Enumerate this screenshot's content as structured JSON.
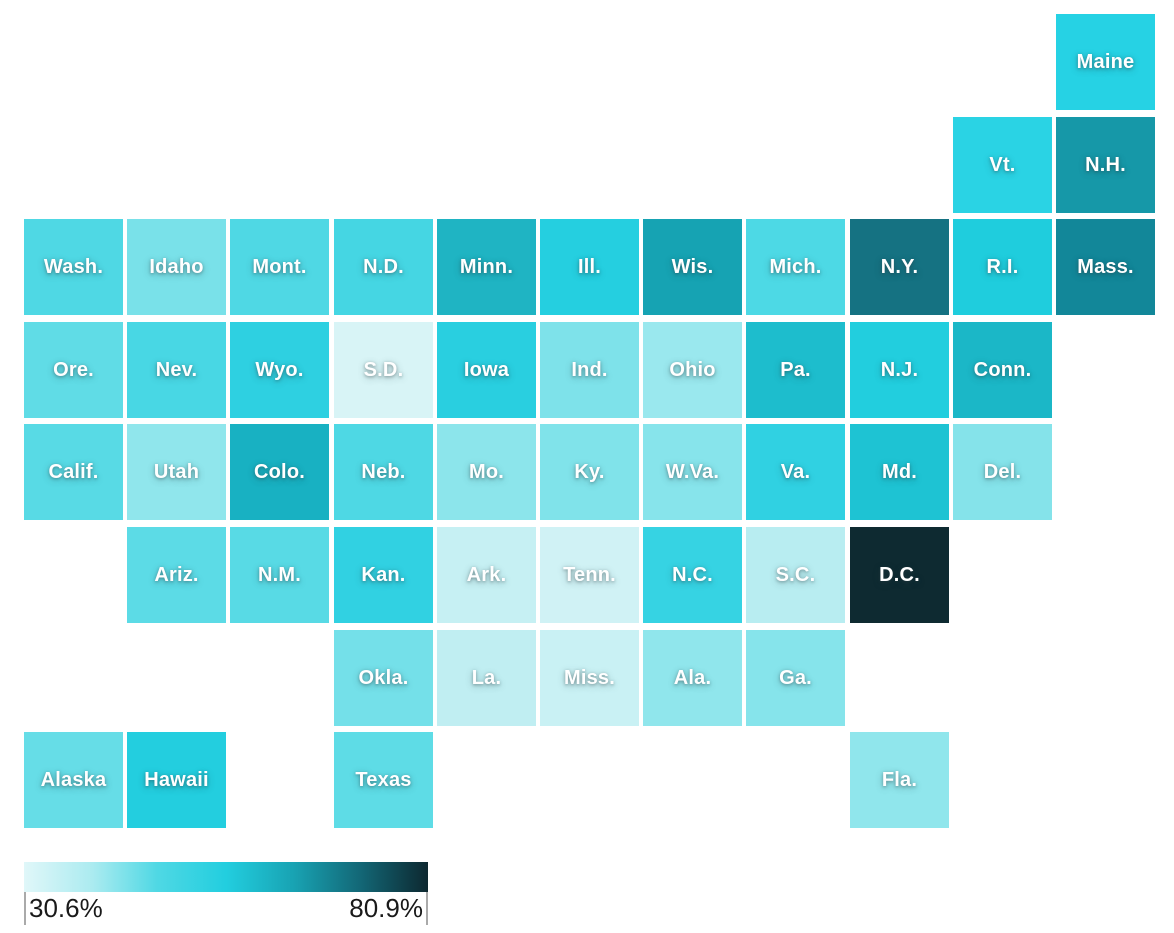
{
  "chart_data": {
    "type": "heatmap",
    "subtype": "us-state-tile-grid-map",
    "title": "",
    "legend": {
      "min_label": "30.6%",
      "max_label": "80.9%",
      "min": 30.6,
      "max": 80.9,
      "unit": "%",
      "scale_colors": [
        "#e0f7f9",
        "#abebf0",
        "#4fd8e4",
        "#22cedf",
        "#18a2b2",
        "#136877",
        "#0d2830"
      ],
      "position": "bottom-left"
    },
    "grid": {
      "rows": 8,
      "cols": 11
    },
    "states": [
      {
        "label": "Maine",
        "row": 0,
        "col": 10,
        "color": "#26d2e4"
      },
      {
        "label": "Vt.",
        "row": 1,
        "col": 9,
        "color": "#2ad3e4"
      },
      {
        "label": "N.H.",
        "row": 1,
        "col": 10,
        "color": "#1698a8"
      },
      {
        "label": "Wash.",
        "row": 2,
        "col": 0,
        "color": "#4fd8e4"
      },
      {
        "label": "Idaho",
        "row": 2,
        "col": 1,
        "color": "#79e1e9"
      },
      {
        "label": "Mont.",
        "row": 2,
        "col": 2,
        "color": "#4fd8e4"
      },
      {
        "label": "N.D.",
        "row": 2,
        "col": 3,
        "color": "#45d6e3"
      },
      {
        "label": "Minn.",
        "row": 2,
        "col": 4,
        "color": "#1fb4c3"
      },
      {
        "label": "Ill.",
        "row": 2,
        "col": 5,
        "color": "#25cfe0"
      },
      {
        "label": "Wis.",
        "row": 2,
        "col": 6,
        "color": "#16a3b3"
      },
      {
        "label": "Mich.",
        "row": 2,
        "col": 7,
        "color": "#4dd9e5"
      },
      {
        "label": "N.Y.",
        "row": 2,
        "col": 8,
        "color": "#157282"
      },
      {
        "label": "R.I.",
        "row": 2,
        "col": 9,
        "color": "#1fcddd"
      },
      {
        "label": "Mass.",
        "row": 2,
        "col": 10,
        "color": "#128799"
      },
      {
        "label": "Ore.",
        "row": 3,
        "col": 0,
        "color": "#60dce6"
      },
      {
        "label": "Nev.",
        "row": 3,
        "col": 1,
        "color": "#48d7e4"
      },
      {
        "label": "Wyo.",
        "row": 3,
        "col": 2,
        "color": "#2ed0e1"
      },
      {
        "label": "S.D.",
        "row": 3,
        "col": 3,
        "color": "#d8f4f6"
      },
      {
        "label": "Iowa",
        "row": 3,
        "col": 4,
        "color": "#29cfe0"
      },
      {
        "label": "Ind.",
        "row": 3,
        "col": 5,
        "color": "#7ee2ea"
      },
      {
        "label": "Ohio",
        "row": 3,
        "col": 6,
        "color": "#9ae8ee"
      },
      {
        "label": "Pa.",
        "row": 3,
        "col": 7,
        "color": "#1dbdcd"
      },
      {
        "label": "N.J.",
        "row": 3,
        "col": 8,
        "color": "#22cede"
      },
      {
        "label": "Conn.",
        "row": 3,
        "col": 9,
        "color": "#1bb7c7"
      },
      {
        "label": "Calif.",
        "row": 4,
        "col": 0,
        "color": "#58dae5"
      },
      {
        "label": "Utah",
        "row": 4,
        "col": 1,
        "color": "#90e6ec"
      },
      {
        "label": "Colo.",
        "row": 4,
        "col": 2,
        "color": "#18b1c2"
      },
      {
        "label": "Neb.",
        "row": 4,
        "col": 3,
        "color": "#4ed8e4"
      },
      {
        "label": "Mo.",
        "row": 4,
        "col": 4,
        "color": "#8ce5eb"
      },
      {
        "label": "Ky.",
        "row": 4,
        "col": 5,
        "color": "#80e3ea"
      },
      {
        "label": "W.Va.",
        "row": 4,
        "col": 6,
        "color": "#87e4eb"
      },
      {
        "label": "Va.",
        "row": 4,
        "col": 7,
        "color": "#30d1e2"
      },
      {
        "label": "Md.",
        "row": 4,
        "col": 8,
        "color": "#1ec3d3"
      },
      {
        "label": "Del.",
        "row": 4,
        "col": 9,
        "color": "#85e3ea"
      },
      {
        "label": "Ariz.",
        "row": 5,
        "col": 1,
        "color": "#5cdbe6"
      },
      {
        "label": "N.M.",
        "row": 5,
        "col": 2,
        "color": "#58dae5"
      },
      {
        "label": "Kan.",
        "row": 5,
        "col": 3,
        "color": "#31d1e2"
      },
      {
        "label": "Ark.",
        "row": 5,
        "col": 4,
        "color": "#c6f0f3"
      },
      {
        "label": "Tenn.",
        "row": 5,
        "col": 5,
        "color": "#d0f2f5"
      },
      {
        "label": "N.C.",
        "row": 5,
        "col": 6,
        "color": "#36d3e3"
      },
      {
        "label": "S.C.",
        "row": 5,
        "col": 7,
        "color": "#b8edf1"
      },
      {
        "label": "D.C.",
        "row": 5,
        "col": 8,
        "color": "#0e2a31"
      },
      {
        "label": "Okla.",
        "row": 6,
        "col": 3,
        "color": "#74e0e9"
      },
      {
        "label": "La.",
        "row": 6,
        "col": 4,
        "color": "#c0eef2"
      },
      {
        "label": "Miss.",
        "row": 6,
        "col": 5,
        "color": "#c9f1f4"
      },
      {
        "label": "Ala.",
        "row": 6,
        "col": 6,
        "color": "#90e6ec"
      },
      {
        "label": "Ga.",
        "row": 6,
        "col": 7,
        "color": "#86e4eb"
      },
      {
        "label": "Alaska",
        "row": 7,
        "col": 0,
        "color": "#66dde7"
      },
      {
        "label": "Hawaii",
        "row": 7,
        "col": 1,
        "color": "#23cedf"
      },
      {
        "label": "Texas",
        "row": 7,
        "col": 3,
        "color": "#5edce6"
      },
      {
        "label": "Fla.",
        "row": 7,
        "col": 8,
        "color": "#90e6ec"
      }
    ]
  }
}
